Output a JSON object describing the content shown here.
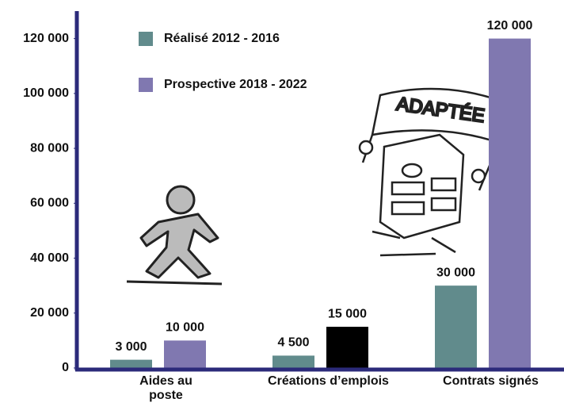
{
  "chart_data": {
    "type": "bar",
    "categories": [
      "Aides au poste",
      "Créations d’emplois",
      "Contrats signés"
    ],
    "series": [
      {
        "name": "Réalisé 2012 - 2016",
        "color": "#618b8c",
        "values": [
          3000,
          4500,
          30000
        ],
        "value_labels": [
          "3 000",
          "4 500",
          "30 000"
        ]
      },
      {
        "name": "Prospective 2018 - 2022",
        "color": "#8078b0",
        "colors": [
          "#8078b0",
          "#000000",
          "#8078b0"
        ],
        "values": [
          10000,
          15000,
          120000
        ],
        "value_labels": [
          "10 000",
          "15 000",
          "120 000"
        ]
      }
    ],
    "ylim": [
      0,
      130000
    ],
    "yticks": [
      0,
      {
        "value": 20000,
        "label": "20 000"
      },
      {
        "value": 40000,
        "label": "40 000"
      },
      {
        "value": 60000,
        "label": "60 000"
      },
      {
        "value": 80000,
        "label": "80 000"
      },
      {
        "value": 100000,
        "label": "100 000"
      },
      {
        "value": 120000,
        "label": "120 000"
      }
    ],
    "axis_color": "#2b2a7a",
    "annotations": [
      "ADAPTÉE"
    ]
  }
}
